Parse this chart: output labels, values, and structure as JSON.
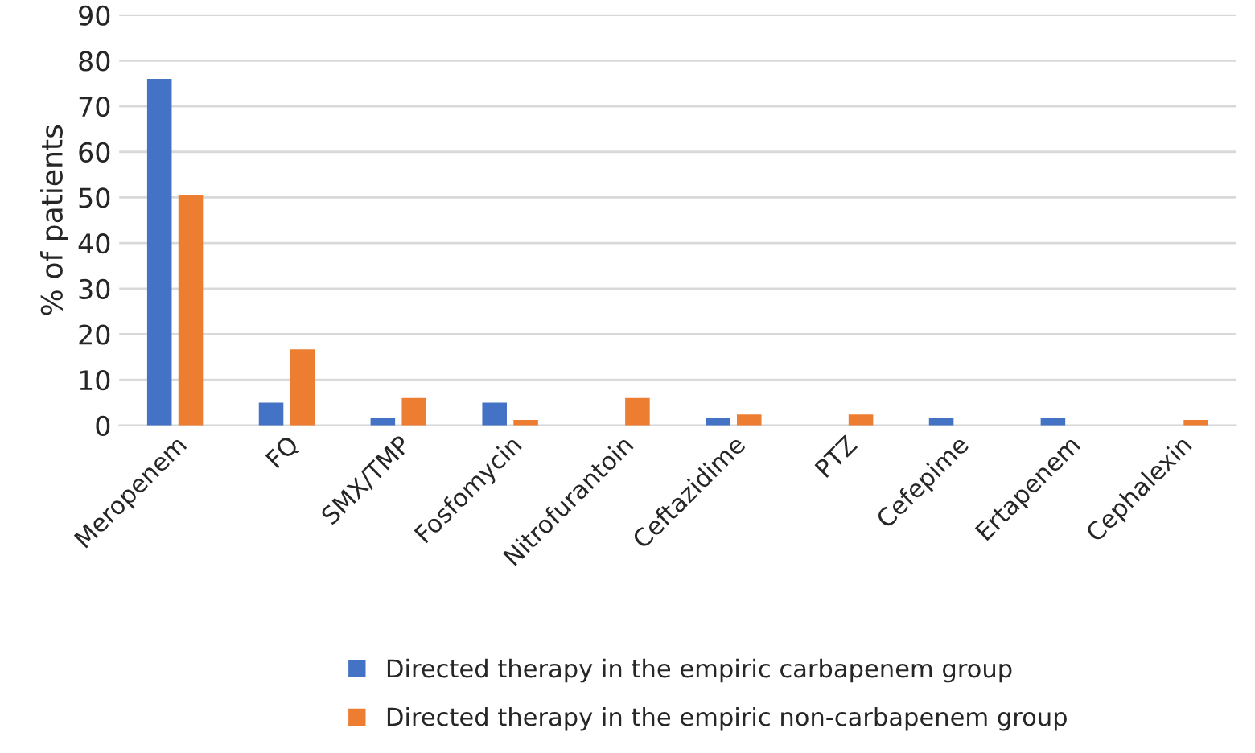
{
  "chart_data": {
    "type": "bar",
    "ylabel": "% of patients",
    "categories": [
      "Meropenem",
      "FQ",
      "SMX/TMP",
      "Fosfomycin",
      "Nitrofurantoin",
      "Ceftazidime",
      "PTZ",
      "Cefepime",
      "Ertapenem",
      "Cephalexin"
    ],
    "series": [
      {
        "name": "Directed therapy in the empiric carbapenem group",
        "color": "#4472c4",
        "values": [
          76,
          5,
          1.6,
          5,
          null,
          1.6,
          null,
          1.6,
          1.6,
          null
        ]
      },
      {
        "name": "Directed therapy in the empiric non-carbapenem group",
        "color": "#ed7d31",
        "values": [
          50.5,
          16.7,
          6,
          1.2,
          6,
          2.4,
          2.4,
          null,
          null,
          1.2
        ]
      }
    ],
    "ylim": [
      0,
      90
    ],
    "yticks": [
      0,
      10,
      20,
      30,
      40,
      50,
      60,
      70,
      80,
      90
    ],
    "grid": "y",
    "legend": "bottom"
  }
}
